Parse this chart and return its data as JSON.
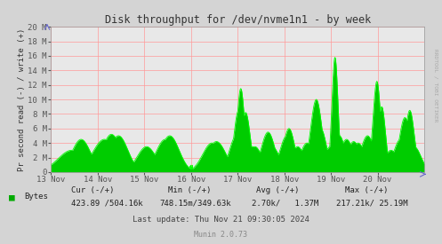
{
  "title": "Disk throughput for /dev/nvme1n1 - by week",
  "ylabel": "Pr second read (-) / write (+)",
  "xlabel_ticks": [
    "13 Nov",
    "14 Nov",
    "15 Nov",
    "16 Nov",
    "17 Nov",
    "18 Nov",
    "19 Nov",
    "20 Nov"
  ],
  "ylim": [
    0,
    20000000
  ],
  "ytick_labels": [
    "0",
    "2 M",
    "4 M",
    "6 M",
    "8 M",
    "10 M",
    "12 M",
    "14 M",
    "16 M",
    "18 M",
    "20 M"
  ],
  "ytick_values": [
    0,
    2000000,
    4000000,
    6000000,
    8000000,
    10000000,
    12000000,
    14000000,
    16000000,
    18000000,
    20000000
  ],
  "line_color": "#00ff00",
  "fill_color": "#00cc00",
  "plot_bg_color": "#e8e8e8",
  "outer_bg_color": "#d4d4d4",
  "grid_color": "#ff9999",
  "legend_label": "Bytes",
  "legend_color": "#00aa00",
  "cur_header": "Cur (-/+)",
  "min_header": "Min (-/+)",
  "avg_header": "Avg (-/+)",
  "max_header": "Max (-/+)",
  "cur_val": "423.89 /504.16k",
  "min_val": "748.15m/349.63k",
  "avg_val": "2.70k/   1.37M",
  "max_val": "217.21k/ 25.19M",
  "footer_line3": "Last update: Thu Nov 21 09:30:05 2024",
  "footer_munin": "Munin 2.0.73",
  "side_label": "RRDTOOL / TOBI OETIKER",
  "num_points": 1000
}
